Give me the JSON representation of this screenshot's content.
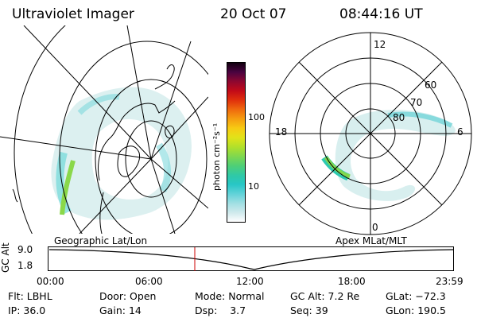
{
  "header": {
    "title": "Ultraviolet Imager",
    "date": "20 Oct 07",
    "time": "08:44:16 UT"
  },
  "left_panel": {
    "label": "Geographic Lat/Lon"
  },
  "right_panel": {
    "label": "Apex MLat/MLT",
    "mlt_labels": {
      "top": "12",
      "left": "18",
      "right": "6",
      "bottom": "0"
    },
    "lat_labels": [
      "60",
      "70",
      "80"
    ]
  },
  "colorbar": {
    "unit_label": "photon cm⁻²s⁻¹",
    "ticks": [
      "100",
      "10"
    ],
    "colors": [
      "#ffffff",
      "#cfe9ec",
      "#9fdfe3",
      "#61d2d8",
      "#27c6c6",
      "#30c9a5",
      "#4fcf76",
      "#7fd84f",
      "#b2e02a",
      "#e1e319",
      "#f7cb13",
      "#f59e10",
      "#ef6a0e",
      "#e0300c",
      "#c20a18",
      "#8e0730",
      "#4a0340",
      "#120010"
    ]
  },
  "altitude_plot": {
    "ylabel": "GC Alt",
    "ticks": [
      "9.0",
      "1.8"
    ],
    "time_ticks": [
      "00:00",
      "06:00",
      "12:00",
      "18:00",
      "23:59"
    ],
    "marker_color": "#cc0000"
  },
  "info": {
    "flt_label": "Flt:",
    "flt_value": "LBHL",
    "ip_label": "IP:",
    "ip_value": "36.0",
    "door_label": "Door:",
    "door_value": "Open",
    "gain_label": "Gain:",
    "gain_value": "14",
    "mode_label": "Mode:",
    "mode_value": "Normal",
    "dsp_label": "Dsp:",
    "dsp_value": "3.7",
    "gcalt_label": "GC Alt:",
    "gcalt_value": "7.2 Re",
    "seq_label": "Seq:",
    "seq_value": "39",
    "glat_label": "GLat:",
    "glat_value": "−72.3",
    "glon_label": "GLon:",
    "glon_value": "190.5"
  }
}
